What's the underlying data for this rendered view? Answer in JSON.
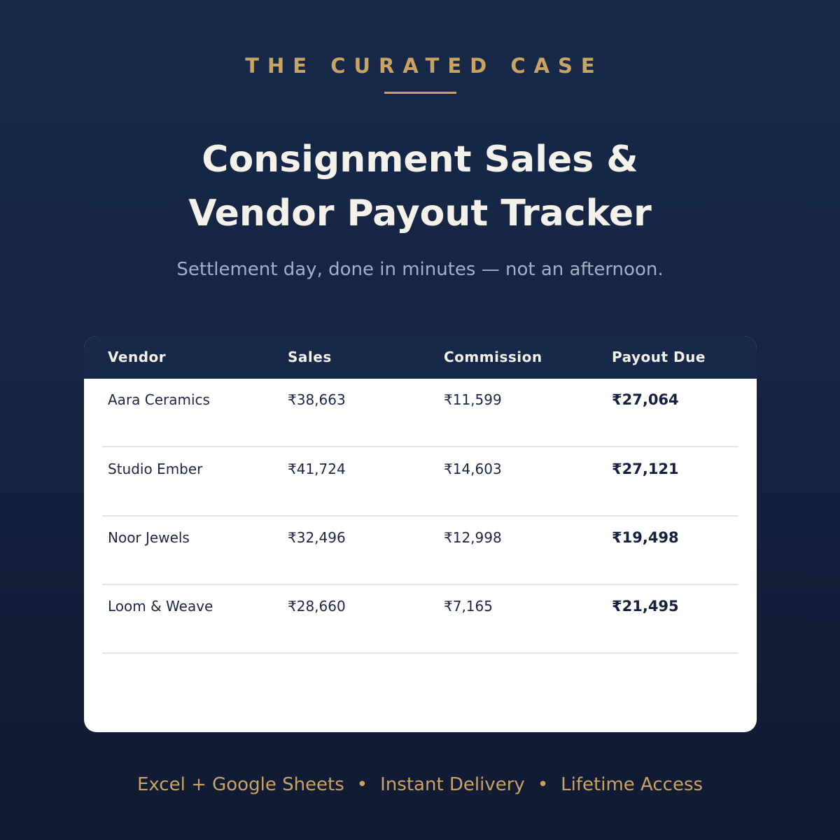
{
  "brand": {
    "name": "THE CURATED CASE"
  },
  "title": {
    "line1": "Consignment Sales &",
    "line2": "Vendor Payout Tracker"
  },
  "subtitle": "Settlement day, done in minutes — not an afternoon.",
  "table": {
    "headers": {
      "vendor": "Vendor",
      "sales": "Sales",
      "commission": "Commission",
      "payout": "Payout Due"
    },
    "rows": [
      {
        "vendor": "Aara Ceramics",
        "sales": "₹38,663",
        "commission": "₹11,599",
        "payout": "₹27,064"
      },
      {
        "vendor": "Studio Ember",
        "sales": "₹41,724",
        "commission": "₹14,603",
        "payout": "₹27,121"
      },
      {
        "vendor": "Noor Jewels",
        "sales": "₹32,496",
        "commission": "₹12,998",
        "payout": "₹19,498"
      },
      {
        "vendor": "Loom & Weave",
        "sales": "₹28,660",
        "commission": "₹7,165",
        "payout": "₹21,495"
      }
    ]
  },
  "footer": {
    "items": [
      "Excel + Google Sheets",
      "Instant Delivery",
      "Lifetime Access"
    ],
    "separator": "•"
  },
  "colors": {
    "background": "#15233f",
    "accent_gold": "#c9a362",
    "header_navy": "#172848",
    "title_text": "#f4f1ea",
    "subtitle_text": "#a5b0c4"
  }
}
